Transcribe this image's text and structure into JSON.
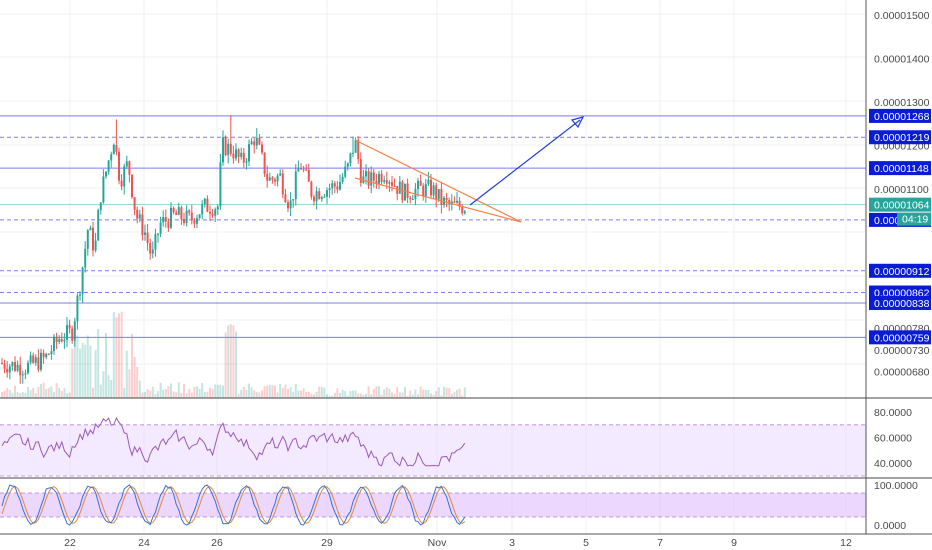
{
  "chart_data": {
    "type": "candlestick",
    "colors": {
      "up": "#26a69a",
      "down": "#ef5350",
      "level_line": "#7a7cf2",
      "level_label_bg": "#0a1bd6",
      "last_price_bg": "#26a69a",
      "wedge": "#f5824a",
      "arrow": "#1f3fd1",
      "rsi": "#9b59b6",
      "rsi_band": "#e9d8ff",
      "stoch_k": "#3b6fd4",
      "stoch_d": "#e08a3a",
      "stoch_band": "#dcb6ff"
    },
    "price_axis": {
      "min": 6.5e-06,
      "max": 1.58e-06,
      "ticks": [
        "0.00001500",
        "0.00001400",
        "0.00001300",
        "0.00001200",
        "0.00001100",
        "0.00000780",
        "0.00000730",
        "0.00000680"
      ],
      "tick_values": [
        1.5e-05,
        1.4e-05,
        1.3e-05,
        1.2e-05,
        1.1e-05,
        7.8e-06,
        7.3e-06,
        6.8e-06
      ]
    },
    "levels": [
      {
        "label": "0.00001268",
        "value": 1.268e-05,
        "style": "solid"
      },
      {
        "label": "0.00001219",
        "value": 1.219e-05,
        "style": "dashed"
      },
      {
        "label": "0.00001148",
        "value": 1.148e-05,
        "style": "solid"
      },
      {
        "label": "0.00001029",
        "value": 1.029e-05,
        "style": "dashed"
      },
      {
        "label": "0.00000912",
        "value": 9.12e-06,
        "style": "dashed"
      },
      {
        "label": "0.00000862",
        "value": 8.62e-06,
        "style": "dashed"
      },
      {
        "label": "0.00000838",
        "value": 8.38e-06,
        "style": "solid"
      },
      {
        "label": "0.00000759",
        "value": 7.59e-06,
        "style": "solid"
      }
    ],
    "last_price": {
      "label": "0.00001064",
      "value": 1.064e-05,
      "countdown": "04:19"
    },
    "x_axis": {
      "ticks": [
        "22",
        "24",
        "26",
        "29",
        "Nov",
        "3",
        "5",
        "7",
        "9",
        "12"
      ]
    },
    "rsi": {
      "ticks": [
        "80.0000",
        "60.0000",
        "40.0000"
      ],
      "tick_values": [
        80,
        60,
        40
      ],
      "band": [
        30,
        70
      ],
      "range": [
        30,
        90
      ]
    },
    "stoch": {
      "ticks": [
        "100.0000",
        "0.0000"
      ],
      "tick_values": [
        100,
        0
      ],
      "band": [
        20,
        80
      ],
      "range": [
        0,
        100
      ]
    }
  }
}
